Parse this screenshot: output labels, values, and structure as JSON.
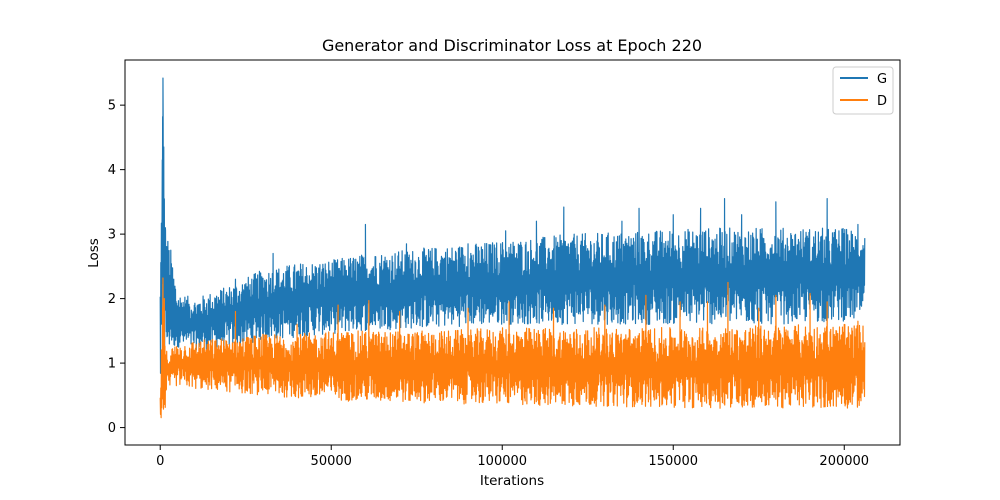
{
  "chart_data": {
    "type": "line",
    "title": "Generator and Discriminator Loss at Epoch 220",
    "xlabel": "Iterations",
    "ylabel": "Loss",
    "xlim": [
      -10300,
      216300
    ],
    "ylim": [
      -0.27,
      5.7
    ],
    "xticks": [
      0,
      50000,
      100000,
      150000,
      200000
    ],
    "xtick_labels": [
      "0",
      "50000",
      "100000",
      "150000",
      "200000"
    ],
    "yticks": [
      0,
      1,
      2,
      3,
      4,
      5
    ],
    "ytick_labels": [
      "0",
      "1",
      "2",
      "3",
      "4",
      "5"
    ],
    "grid": false,
    "legend_position": "top-right",
    "series": [
      {
        "name": "G",
        "color": "#1f77b4",
        "note_range": "oscillating band",
        "x": [
          0,
          500,
          800,
          1000,
          1500,
          2000,
          3000,
          5000,
          10000,
          20000,
          30000,
          40000,
          50000,
          60000,
          80000,
          100000,
          120000,
          140000,
          160000,
          180000,
          200000,
          206000
        ],
        "low": [
          0.55,
          0.6,
          0.8,
          0.9,
          1.0,
          1.1,
          1.2,
          1.25,
          1.2,
          1.25,
          1.35,
          1.4,
          1.45,
          1.5,
          1.55,
          1.6,
          1.6,
          1.6,
          1.6,
          1.6,
          1.65,
          1.65
        ],
        "high": [
          2.3,
          4.2,
          5.42,
          4.8,
          3.2,
          3.0,
          2.8,
          2.1,
          2.0,
          2.2,
          2.45,
          2.55,
          2.6,
          2.7,
          2.8,
          2.9,
          3.0,
          3.05,
          3.1,
          3.1,
          3.1,
          3.05
        ]
      },
      {
        "name": "D",
        "color": "#ff7f0e",
        "x": [
          0,
          500,
          800,
          1000,
          1500,
          2000,
          3000,
          5000,
          10000,
          20000,
          30000,
          40000,
          50000,
          60000,
          80000,
          100000,
          120000,
          140000,
          160000,
          180000,
          200000,
          206000
        ],
        "low": [
          0.05,
          0.02,
          0.05,
          0.1,
          0.3,
          0.5,
          0.6,
          0.65,
          0.6,
          0.55,
          0.5,
          0.45,
          0.42,
          0.4,
          0.38,
          0.35,
          0.33,
          0.32,
          0.3,
          0.3,
          0.3,
          0.3
        ],
        "high": [
          0.6,
          1.5,
          2.3,
          1.8,
          1.2,
          1.2,
          1.25,
          1.3,
          1.35,
          1.4,
          1.45,
          1.45,
          1.5,
          1.5,
          1.5,
          1.55,
          1.55,
          1.55,
          1.55,
          1.6,
          1.6,
          1.6
        ]
      }
    ],
    "spikes": {
      "G": [
        [
          800,
          5.42
        ],
        [
          700,
          4.82
        ],
        [
          600,
          4.15
        ],
        [
          1500,
          3.1
        ],
        [
          22000,
          2.3
        ],
        [
          33000,
          2.7
        ],
        [
          60000,
          3.15
        ],
        [
          63000,
          2.65
        ],
        [
          72000,
          2.85
        ],
        [
          90000,
          2.85
        ],
        [
          101000,
          3.05
        ],
        [
          110000,
          3.2
        ],
        [
          118000,
          3.42
        ],
        [
          135000,
          3.2
        ],
        [
          140000,
          3.4
        ],
        [
          150000,
          3.3
        ],
        [
          158000,
          3.4
        ],
        [
          165000,
          3.55
        ],
        [
          170000,
          3.3
        ],
        [
          180000,
          3.5
        ],
        [
          195000,
          3.55
        ],
        [
          204000,
          3.15
        ]
      ],
      "D": [
        [
          800,
          2.32
        ],
        [
          1200,
          2.0
        ],
        [
          22000,
          1.8
        ],
        [
          40000,
          1.6
        ],
        [
          52000,
          1.9
        ],
        [
          61000,
          1.97
        ],
        [
          70000,
          1.8
        ],
        [
          90000,
          1.85
        ],
        [
          102000,
          1.95
        ],
        [
          115000,
          1.85
        ],
        [
          130000,
          1.9
        ],
        [
          142000,
          2.05
        ],
        [
          152000,
          1.95
        ],
        [
          160000,
          1.95
        ],
        [
          166000,
          2.25
        ],
        [
          175000,
          1.85
        ],
        [
          180000,
          2.05
        ],
        [
          190000,
          2.08
        ],
        [
          195000,
          1.95
        ],
        [
          204000,
          1.65
        ]
      ]
    }
  }
}
